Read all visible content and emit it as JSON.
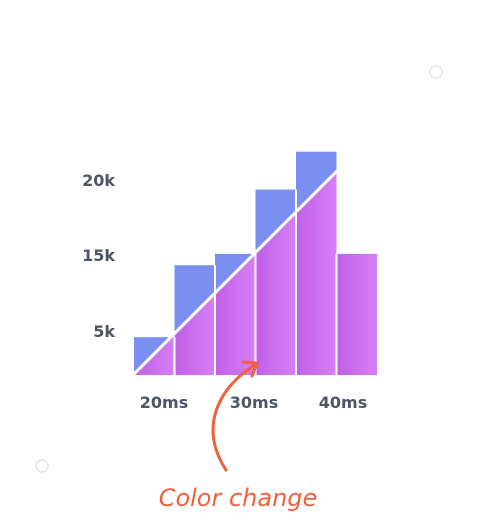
{
  "colors": {
    "upper_bar": "#7b8ff0",
    "lower_bar_start": "#c15fe6",
    "lower_bar_end": "#d57ff7",
    "diagonal": "#ffffff",
    "annotation": "#f0603a",
    "axis_text": "#4f5566"
  },
  "chart_data": {
    "type": "bar",
    "title": "",
    "xlabel": "",
    "ylabel": "",
    "x_tick_labels": [
      "20ms",
      "30ms",
      "40ms"
    ],
    "y_tick_labels": [
      "5k",
      "15k",
      "20k"
    ],
    "bins": [
      {
        "start": 15,
        "end": 20,
        "value": 5000
      },
      {
        "start": 20,
        "end": 25,
        "value": 14500
      },
      {
        "start": 25,
        "end": 30,
        "value": 16000
      },
      {
        "start": 30,
        "end": 35,
        "value": 24500
      },
      {
        "start": 35,
        "end": 40,
        "value": 29500
      },
      {
        "start": 40,
        "end": 45,
        "value": 16000
      }
    ],
    "grid": false,
    "legend": "none",
    "annotation": {
      "text": "Color change",
      "note": "bars are filled purple below the diagonal line and blue above it"
    }
  }
}
